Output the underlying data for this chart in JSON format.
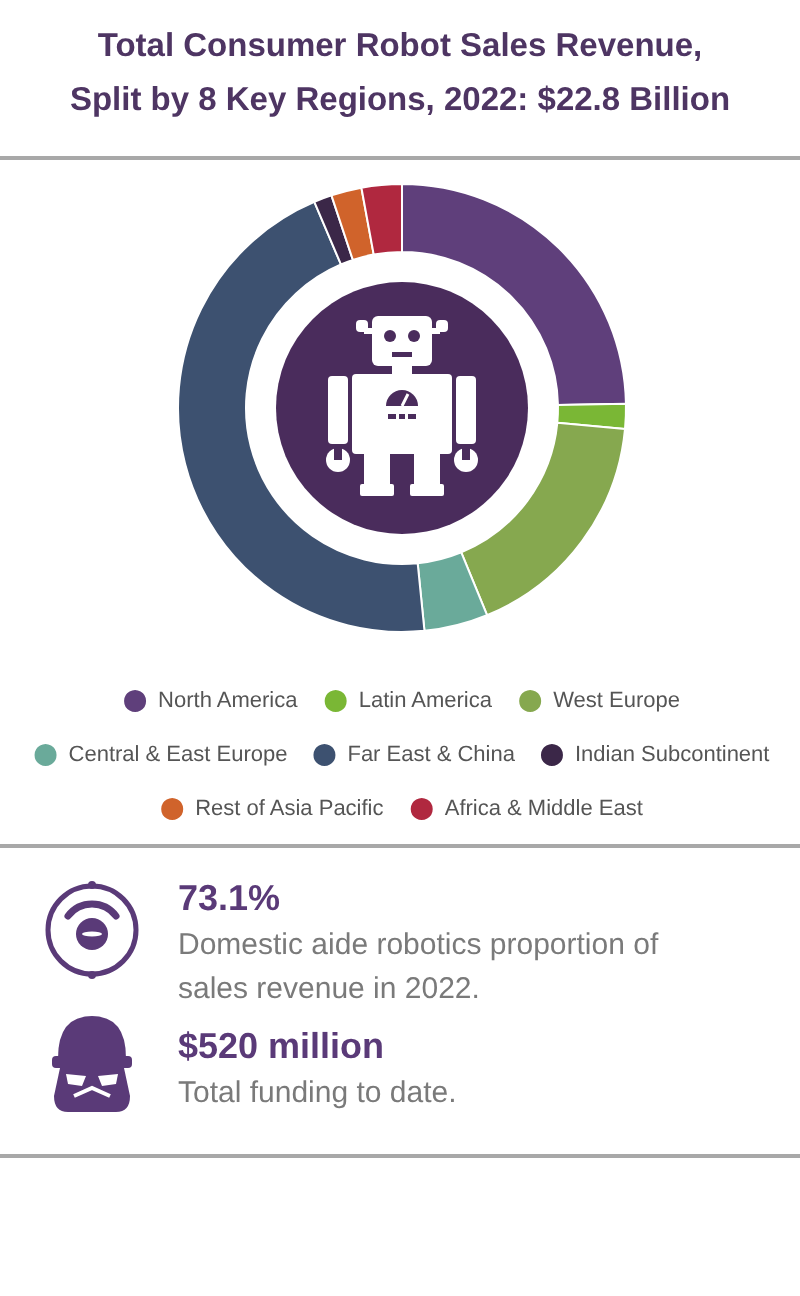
{
  "chart_data": {
    "type": "donut",
    "title": "Total Consumer Robot Sales Revenue, Split by 8 Key Regions, 2022: $22.8 Billion",
    "categories": [
      "North America",
      "Latin America",
      "West Europe",
      "Central & East Europe",
      "Far East & China",
      "Indian Subcontinent",
      "Rest of Asia Pacific",
      "Africa & Middle East"
    ],
    "values": [
      24.7,
      1.8,
      17.3,
      4.6,
      45.2,
      1.3,
      2.2,
      2.9
    ],
    "colors": [
      "#5f3f7b",
      "#7ab735",
      "#86a84f",
      "#6aaa9a",
      "#3d5170",
      "#3b2748",
      "#d0632b",
      "#b0283f"
    ],
    "legend": "bottom",
    "annotations": [
      "73.1%",
      "Domestic aide robotics proportion of sales revenue in 2022.",
      "$520 million",
      "Total funding to date."
    ]
  }
}
